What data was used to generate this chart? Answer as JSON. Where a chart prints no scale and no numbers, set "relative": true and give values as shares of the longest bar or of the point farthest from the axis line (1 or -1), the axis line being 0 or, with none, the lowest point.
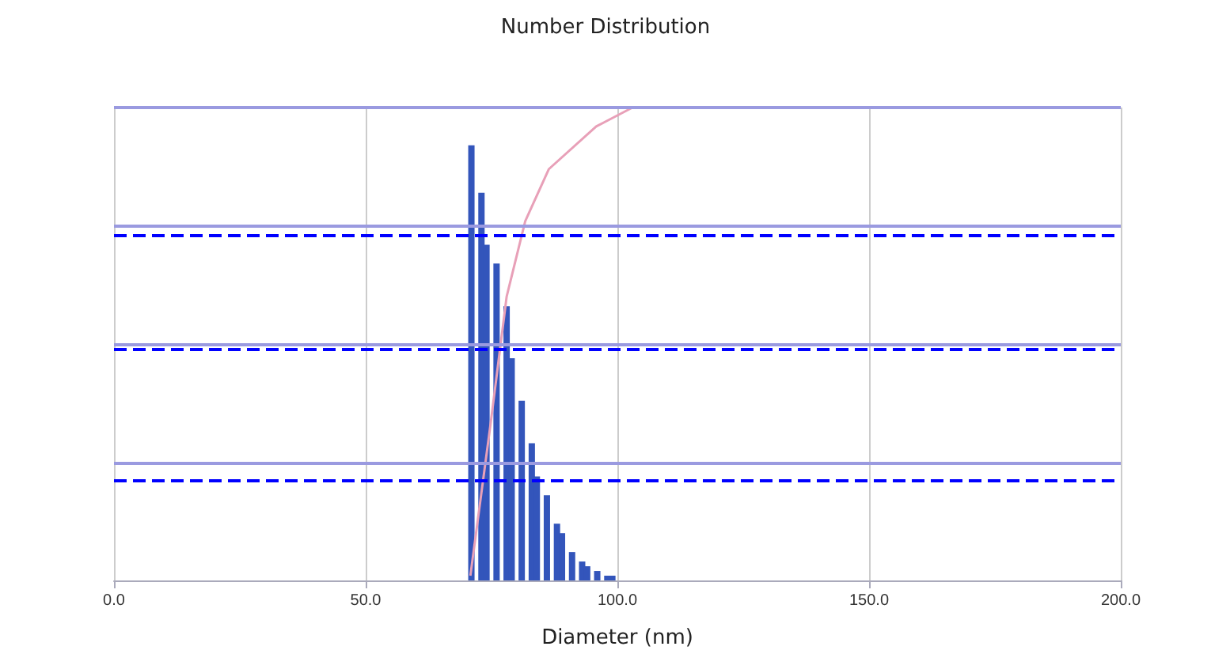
{
  "chart_data": {
    "type": "bar",
    "title": "Number Distribution",
    "xlabel": "Diameter (nm)",
    "relative": true,
    "grid": "x",
    "xlim": [
      0,
      200
    ],
    "xticks": [
      {
        "value": 0,
        "label": "0.0"
      },
      {
        "value": 50,
        "label": "50.0"
      },
      {
        "value": 100,
        "label": "100.0"
      },
      {
        "value": 150,
        "label": "150.0"
      },
      {
        "value": 200,
        "label": "200.0"
      }
    ],
    "series": [
      {
        "color": "#3355bb",
        "x": [
          71,
          73,
          74,
          76,
          78,
          79,
          81,
          83,
          84,
          86,
          88,
          89,
          91,
          93,
          94,
          96,
          98,
          99
        ],
        "values": [
          0.92,
          0.82,
          0.71,
          0.67,
          0.58,
          0.47,
          0.38,
          0.29,
          0.22,
          0.18,
          0.12,
          0.1,
          0.06,
          0.04,
          0.03,
          0.02,
          0.01,
          0.01
        ]
      },
      {
        "type": "line",
        "color": "#e8a0b8",
        "marker": "none",
        "x": [
          70.8,
          74.8,
          78,
          81.7,
          86.4,
          95.8,
          103
        ],
        "values": [
          0.01,
          0.33,
          0.6,
          0.76,
          0.87,
          0.96,
          1
        ]
      }
    ],
    "ref_lines": [
      {
        "axis": "y",
        "value": 1,
        "color": "#9a9ae0",
        "line_style": "solid"
      },
      {
        "axis": "y",
        "value": 0.75,
        "color": "#9a9ae0",
        "line_style": "solid"
      },
      {
        "axis": "y",
        "value": 0.5,
        "color": "#9a9ae0",
        "line_style": "solid"
      },
      {
        "axis": "y",
        "value": 0.25,
        "color": "#9a9ae0",
        "line_style": "solid"
      },
      {
        "axis": "y",
        "value": 0.73,
        "color": "#0000ff",
        "line_style": "dashed"
      },
      {
        "axis": "y",
        "value": 0.49,
        "color": "#0000ff",
        "line_style": "dashed"
      },
      {
        "axis": "y",
        "value": 0.21,
        "color": "#0000ff",
        "line_style": "dashed"
      }
    ]
  }
}
